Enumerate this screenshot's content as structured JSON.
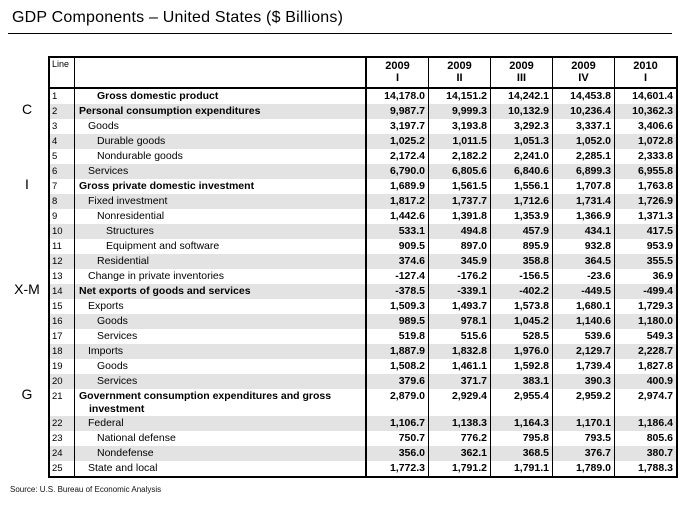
{
  "title": "GDP Components – United States ($ Billions)",
  "source": "Source: U.S. Bureau of Economic Analysis",
  "side_labels": [
    {
      "label": "C",
      "line": 2
    },
    {
      "label": "I",
      "line": 7
    },
    {
      "label": "X-M",
      "line": 14
    },
    {
      "label": "G",
      "line": 21
    }
  ],
  "table": {
    "line_header": "Line",
    "columns": [
      {
        "year": "2009",
        "quarter": "I"
      },
      {
        "year": "2009",
        "quarter": "II"
      },
      {
        "year": "2009",
        "quarter": "III"
      },
      {
        "year": "2009",
        "quarter": "IV"
      },
      {
        "year": "2010",
        "quarter": "I"
      }
    ],
    "rows": [
      {
        "line": 1,
        "label": "Gross domestic product",
        "indent": 2,
        "bold": true,
        "values": [
          "14,178.0",
          "14,151.2",
          "14,242.1",
          "14,453.8",
          "14,601.4"
        ]
      },
      {
        "line": 2,
        "label": "Personal consumption expenditures",
        "indent": 0,
        "bold": true,
        "values": [
          "9,987.7",
          "9,999.3",
          "10,132.9",
          "10,236.4",
          "10,362.3"
        ]
      },
      {
        "line": 3,
        "label": "Goods",
        "indent": 1,
        "bold": false,
        "values": [
          "3,197.7",
          "3,193.8",
          "3,292.3",
          "3,337.1",
          "3,406.6"
        ]
      },
      {
        "line": 4,
        "label": "Durable goods",
        "indent": 2,
        "bold": false,
        "values": [
          "1,025.2",
          "1,011.5",
          "1,051.3",
          "1,052.0",
          "1,072.8"
        ]
      },
      {
        "line": 5,
        "label": "Nondurable goods",
        "indent": 2,
        "bold": false,
        "values": [
          "2,172.4",
          "2,182.2",
          "2,241.0",
          "2,285.1",
          "2,333.8"
        ]
      },
      {
        "line": 6,
        "label": "Services",
        "indent": 1,
        "bold": false,
        "values": [
          "6,790.0",
          "6,805.6",
          "6,840.6",
          "6,899.3",
          "6,955.8"
        ]
      },
      {
        "line": 7,
        "label": "Gross private domestic investment",
        "indent": 0,
        "bold": true,
        "values": [
          "1,689.9",
          "1,561.5",
          "1,556.1",
          "1,707.8",
          "1,763.8"
        ]
      },
      {
        "line": 8,
        "label": "Fixed investment",
        "indent": 1,
        "bold": false,
        "values": [
          "1,817.2",
          "1,737.7",
          "1,712.6",
          "1,731.4",
          "1,726.9"
        ]
      },
      {
        "line": 9,
        "label": "Nonresidential",
        "indent": 2,
        "bold": false,
        "values": [
          "1,442.6",
          "1,391.8",
          "1,353.9",
          "1,366.9",
          "1,371.3"
        ]
      },
      {
        "line": 10,
        "label": "Structures",
        "indent": 3,
        "bold": false,
        "values": [
          "533.1",
          "494.8",
          "457.9",
          "434.1",
          "417.5"
        ]
      },
      {
        "line": 11,
        "label": "Equipment and software",
        "indent": 3,
        "bold": false,
        "values": [
          "909.5",
          "897.0",
          "895.9",
          "932.8",
          "953.9"
        ]
      },
      {
        "line": 12,
        "label": "Residential",
        "indent": 2,
        "bold": false,
        "values": [
          "374.6",
          "345.9",
          "358.8",
          "364.5",
          "355.5"
        ]
      },
      {
        "line": 13,
        "label": "Change in private inventories",
        "indent": 1,
        "bold": false,
        "values": [
          "-127.4",
          "-176.2",
          "-156.5",
          "-23.6",
          "36.9"
        ]
      },
      {
        "line": 14,
        "label": "Net exports of goods and services",
        "indent": 0,
        "bold": true,
        "values": [
          "-378.5",
          "-339.1",
          "-402.2",
          "-449.5",
          "-499.4"
        ]
      },
      {
        "line": 15,
        "label": "Exports",
        "indent": 1,
        "bold": false,
        "values": [
          "1,509.3",
          "1,493.7",
          "1,573.8",
          "1,680.1",
          "1,729.3"
        ]
      },
      {
        "line": 16,
        "label": "Goods",
        "indent": 2,
        "bold": false,
        "values": [
          "989.5",
          "978.1",
          "1,045.2",
          "1,140.6",
          "1,180.0"
        ]
      },
      {
        "line": 17,
        "label": "Services",
        "indent": 2,
        "bold": false,
        "values": [
          "519.8",
          "515.6",
          "528.5",
          "539.6",
          "549.3"
        ]
      },
      {
        "line": 18,
        "label": "Imports",
        "indent": 1,
        "bold": false,
        "values": [
          "1,887.9",
          "1,832.8",
          "1,976.0",
          "2,129.7",
          "2,228.7"
        ]
      },
      {
        "line": 19,
        "label": "Goods",
        "indent": 2,
        "bold": false,
        "values": [
          "1,508.2",
          "1,461.1",
          "1,592.8",
          "1,739.4",
          "1,827.8"
        ]
      },
      {
        "line": 20,
        "label": "Services",
        "indent": 2,
        "bold": false,
        "values": [
          "379.6",
          "371.7",
          "383.1",
          "390.3",
          "400.9"
        ]
      },
      {
        "line": 21,
        "label": "Government consumption expenditures and gross investment",
        "indent": 0,
        "bold": true,
        "values": [
          "2,879.0",
          "2,929.4",
          "2,955.4",
          "2,959.2",
          "2,974.7"
        ]
      },
      {
        "line": 22,
        "label": "Federal",
        "indent": 1,
        "bold": false,
        "values": [
          "1,106.7",
          "1,138.3",
          "1,164.3",
          "1,170.1",
          "1,186.4"
        ]
      },
      {
        "line": 23,
        "label": "National defense",
        "indent": 2,
        "bold": false,
        "values": [
          "750.7",
          "776.2",
          "795.8",
          "793.5",
          "805.6"
        ]
      },
      {
        "line": 24,
        "label": "Nondefense",
        "indent": 2,
        "bold": false,
        "values": [
          "356.0",
          "362.1",
          "368.5",
          "376.7",
          "380.7"
        ]
      },
      {
        "line": 25,
        "label": "State and local",
        "indent": 1,
        "bold": false,
        "values": [
          "1,772.3",
          "1,791.2",
          "1,791.1",
          "1,789.0",
          "1,788.3"
        ]
      }
    ]
  }
}
